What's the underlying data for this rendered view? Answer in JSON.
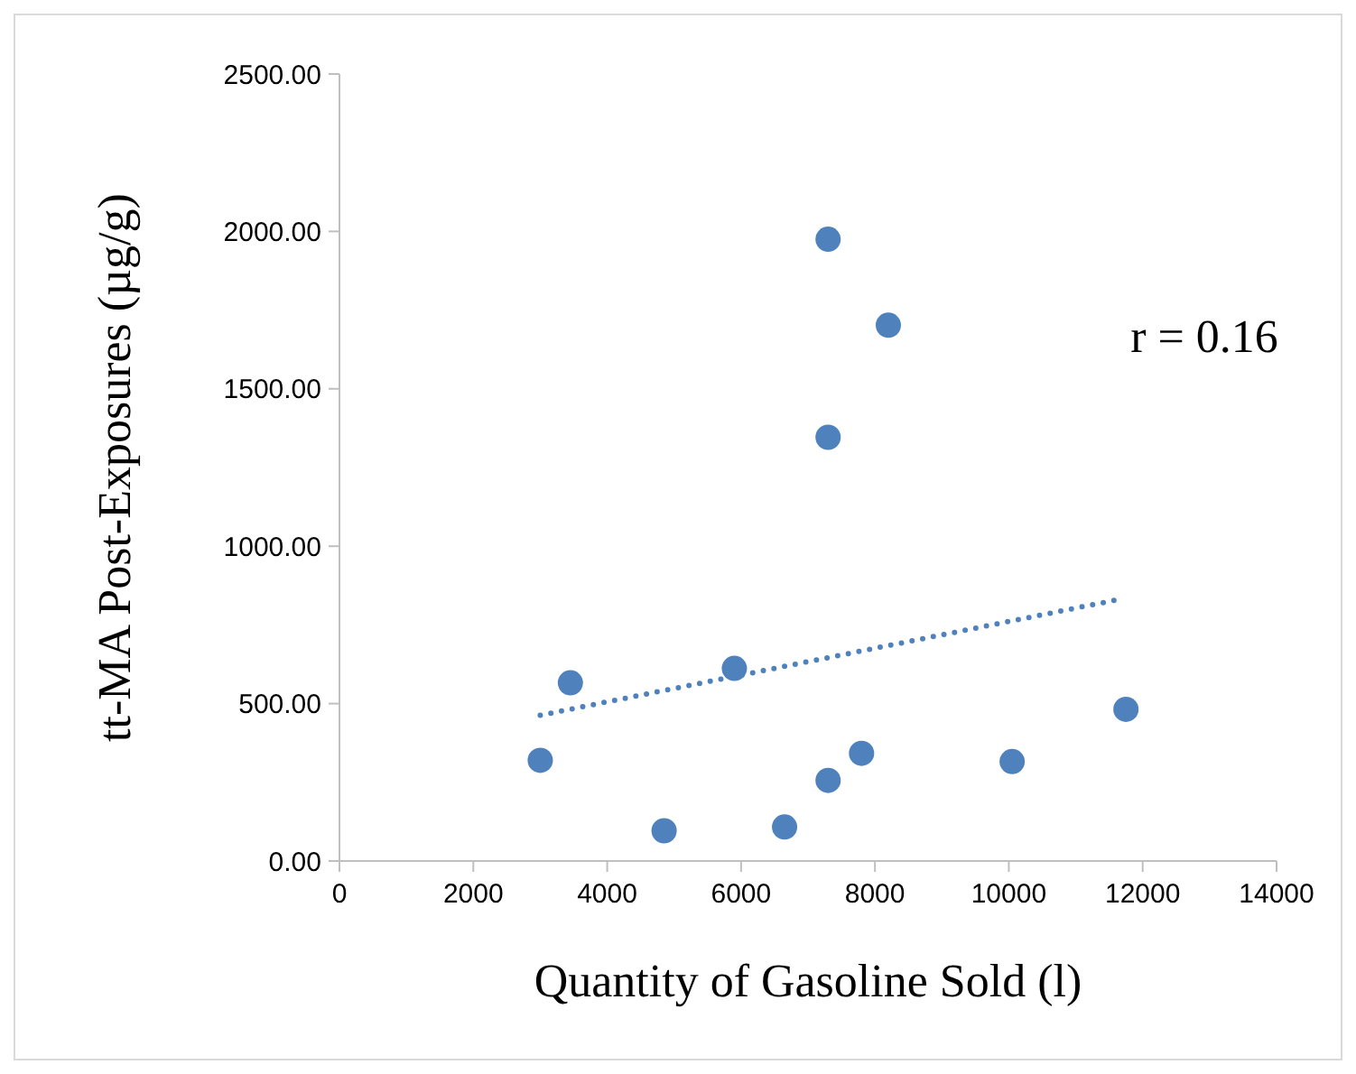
{
  "chart_data": {
    "type": "scatter",
    "xlabel": "Quantity of Gasoline Sold (l)",
    "ylabel": "tt-MA Post-Exposures (µg/g)",
    "xlim": [
      0,
      14000
    ],
    "xticks": [
      0,
      2000,
      4000,
      6000,
      8000,
      10000,
      12000,
      14000
    ],
    "ylim": [
      0,
      2500
    ],
    "yticks": [
      {
        "value": 0,
        "label": "0.00"
      },
      {
        "value": 500,
        "label": "500.00"
      },
      {
        "value": 1000,
        "label": "1000.00"
      },
      {
        "value": 1500,
        "label": "1500.00"
      },
      {
        "value": 2000,
        "label": "2000.00"
      },
      {
        "value": 2500,
        "label": "2500.00"
      }
    ],
    "grid": false,
    "marker": "circle",
    "series": [
      {
        "color": "#4f81bd",
        "x": [
          3000,
          3450,
          4850,
          5900,
          6650,
          7300,
          7800,
          10050,
          11750,
          7300,
          7300,
          8200
        ],
        "values": [
          320,
          566,
          96,
          612,
          108,
          256,
          342,
          316,
          482,
          1346,
          1975,
          1702
        ]
      },
      {
        "type": "line",
        "color": "#4f81bd",
        "line_style": "dotted",
        "marker": "none",
        "x": [
          3000,
          11600
        ],
        "values": [
          463,
          829
        ]
      }
    ],
    "annotations": [
      "r = 0.16"
    ]
  }
}
